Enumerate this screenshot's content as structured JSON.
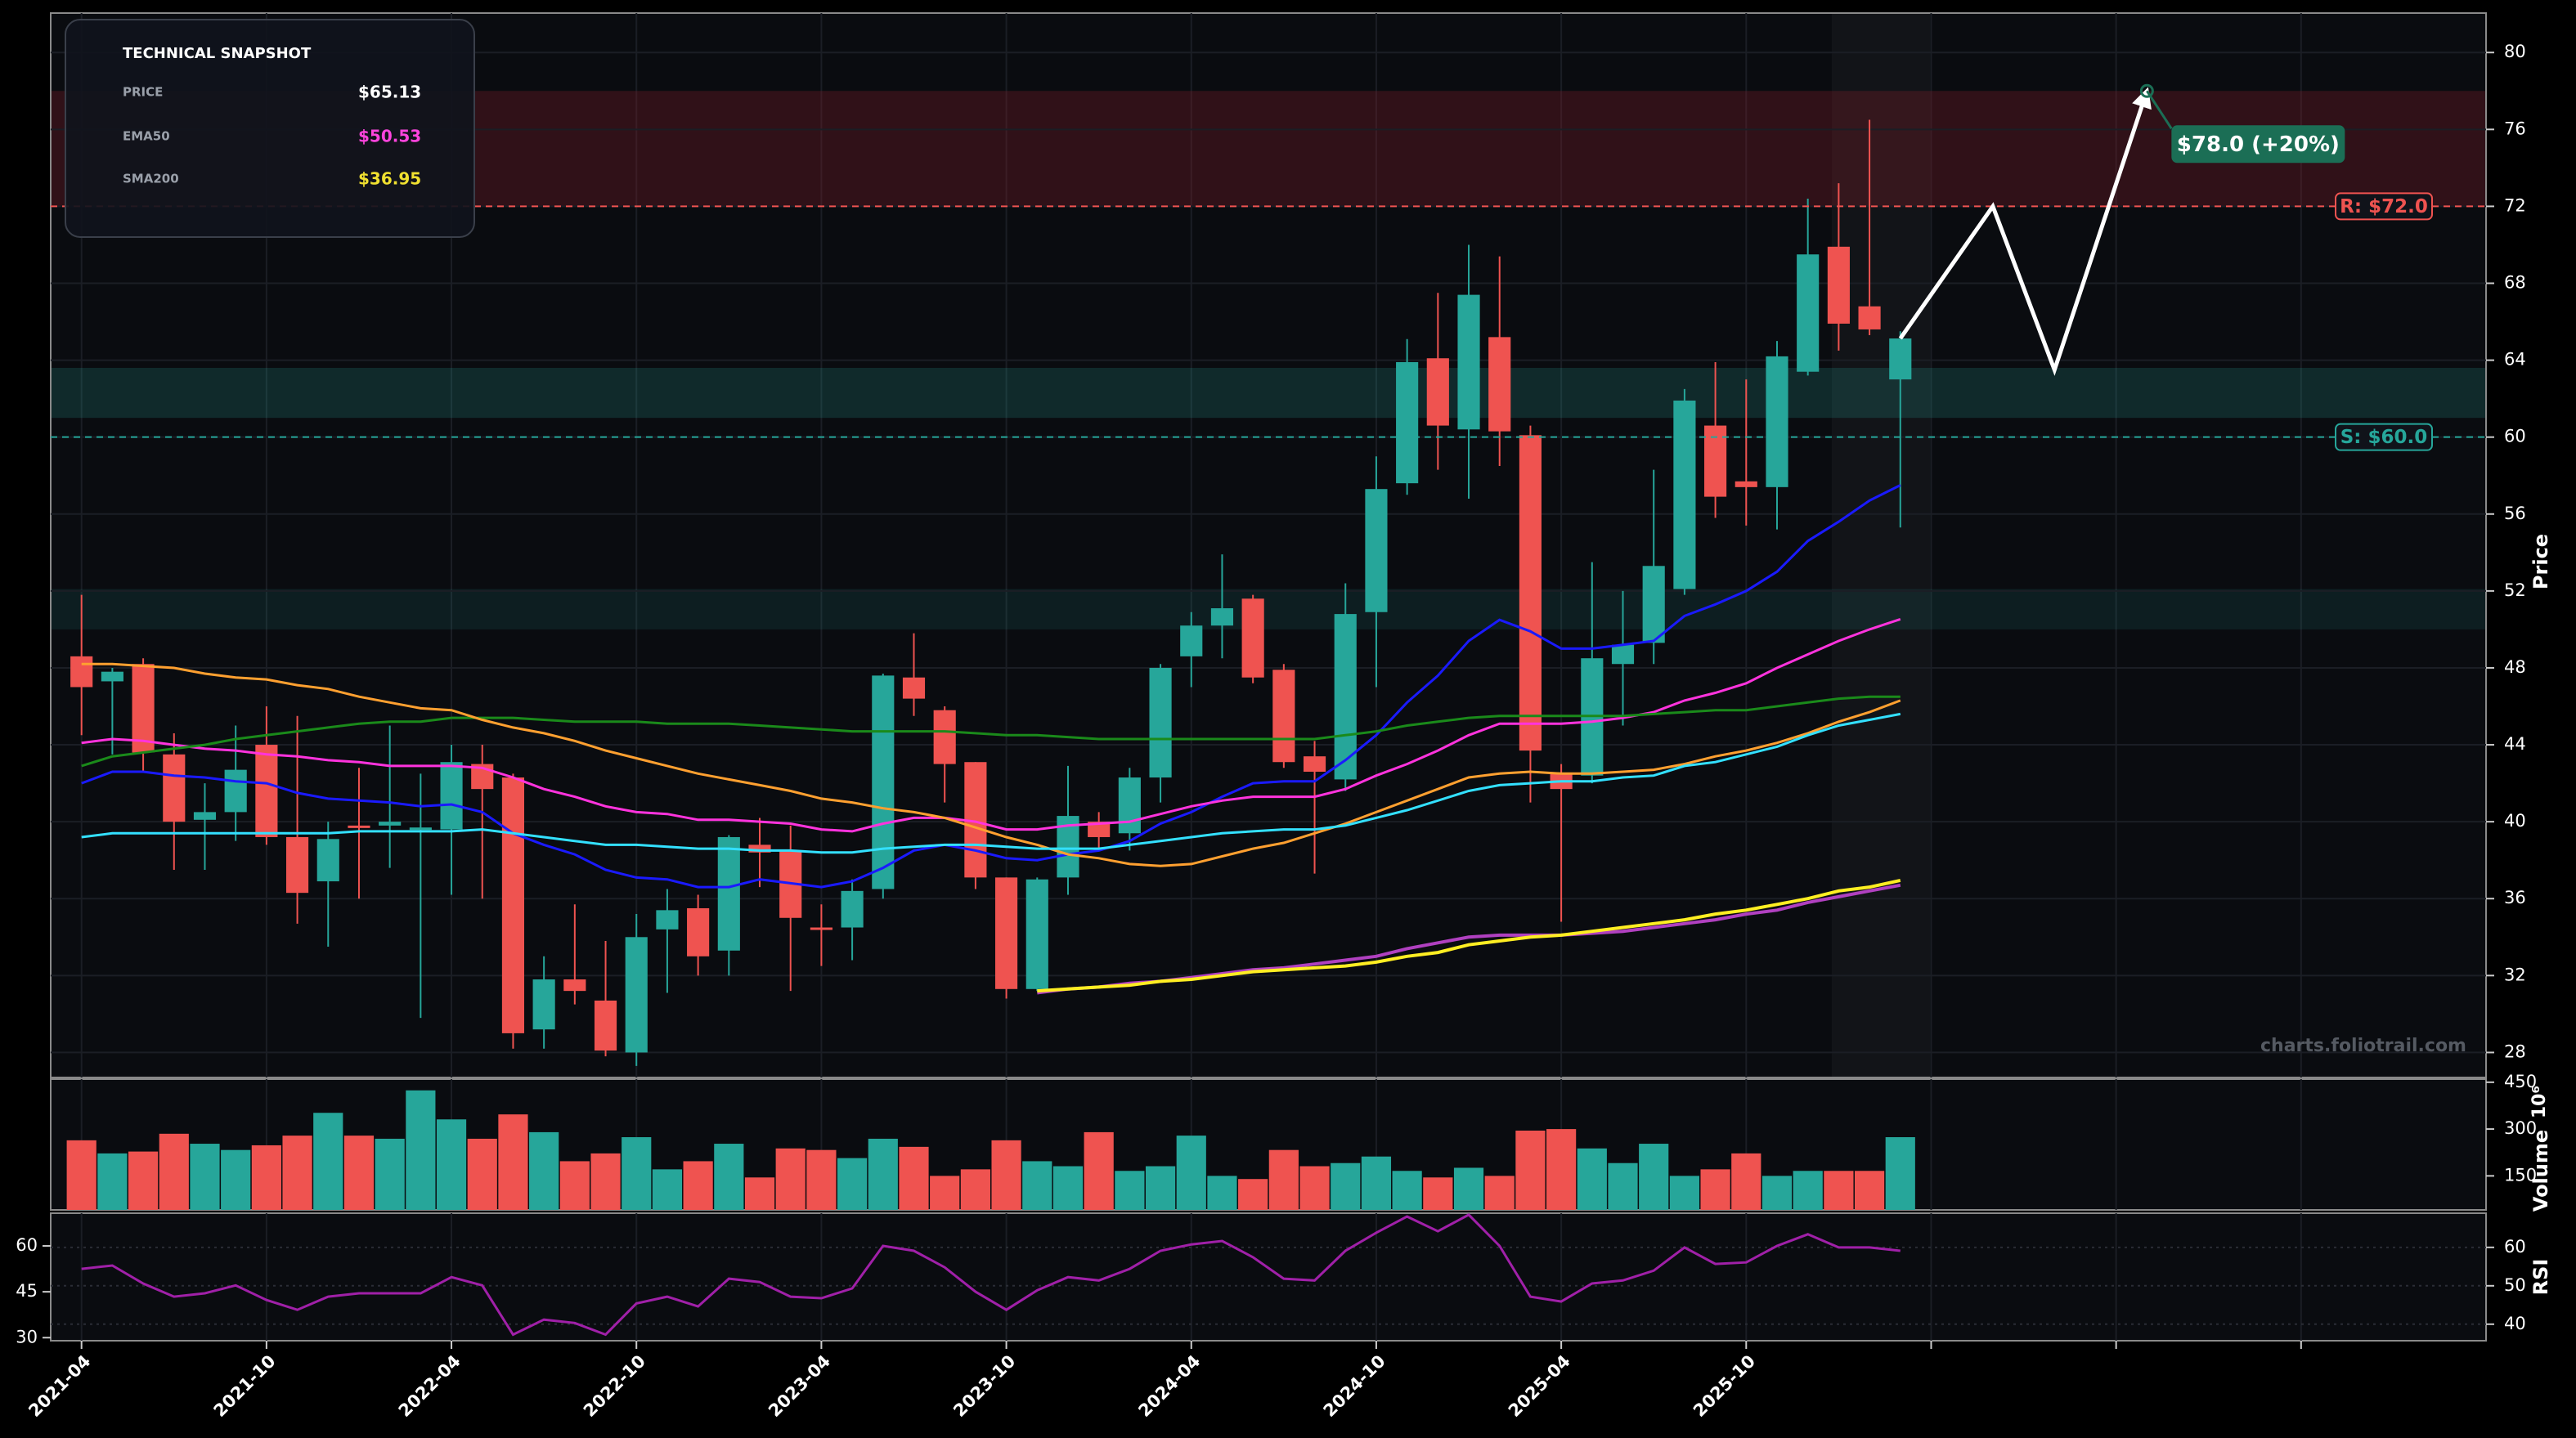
{
  "chart_data": [
    {
      "type": "candlestick",
      "y_label": "Price",
      "watermark": "charts.foliotrail.com",
      "up_color": "#26a69a",
      "down_color": "#ef5350",
      "x": [
        "2021-04",
        "2021-05",
        "2021-06",
        "2021-07",
        "2021-08",
        "2021-09",
        "2021-10",
        "2021-11",
        "2021-12",
        "2022-01",
        "2022-02",
        "2022-03",
        "2022-04",
        "2022-05",
        "2022-06",
        "2022-07",
        "2022-08",
        "2022-09",
        "2022-10",
        "2022-11",
        "2022-12",
        "2023-01",
        "2023-02",
        "2023-03",
        "2023-04",
        "2023-05",
        "2023-06",
        "2023-07",
        "2023-08",
        "2023-09",
        "2023-10",
        "2023-11",
        "2023-12",
        "2024-01",
        "2024-02",
        "2024-03",
        "2024-04",
        "2024-05",
        "2024-06",
        "2024-07",
        "2024-08",
        "2024-09",
        "2024-10",
        "2024-11",
        "2024-12",
        "2025-01",
        "2025-02",
        "2025-03",
        "2025-04",
        "2025-05",
        "2025-06",
        "2025-07",
        "2025-08",
        "2025-09",
        "2025-10",
        "2025-11",
        "2025-12",
        "2026-01",
        "2026-02",
        "2026-03"
      ],
      "open": [
        48.6,
        47.3,
        48.2,
        43.5,
        40.1,
        40.5,
        44.0,
        39.2,
        36.9,
        39.8,
        39.8,
        39.6,
        39.6,
        43.0,
        42.3,
        29.2,
        31.8,
        30.7,
        28.0,
        34.4,
        35.5,
        33.3,
        38.8,
        38.5,
        34.5,
        34.5,
        36.5,
        47.5,
        45.8,
        43.1,
        37.1,
        31.3,
        37.1,
        40.0,
        39.4,
        42.3,
        48.6,
        50.2,
        51.6,
        47.9,
        43.4,
        42.2,
        50.9,
        57.6,
        64.1,
        60.4,
        65.2,
        60.1,
        42.5,
        42.4,
        48.2,
        49.3,
        52.1,
        60.6,
        57.7,
        57.4,
        63.4,
        69.9,
        66.8,
        63.0
      ],
      "high": [
        51.8,
        48.0,
        48.5,
        44.6,
        42.0,
        45.0,
        46.0,
        45.5,
        40.0,
        42.8,
        45.0,
        42.5,
        44.0,
        44.0,
        42.5,
        33.0,
        35.7,
        33.8,
        35.2,
        36.5,
        36.2,
        39.3,
        40.2,
        39.8,
        35.7,
        37.0,
        47.7,
        49.8,
        46.0,
        43.1,
        37.1,
        37.1,
        42.9,
        40.5,
        42.8,
        48.2,
        50.9,
        53.9,
        51.8,
        48.2,
        44.2,
        52.4,
        59.0,
        65.1,
        67.5,
        70.0,
        69.4,
        60.6,
        43.0,
        53.5,
        52.0,
        58.3,
        62.5,
        63.9,
        63.0,
        65.0,
        72.4,
        73.2,
        76.5,
        65.5
      ],
      "low": [
        44.5,
        43.5,
        42.6,
        37.5,
        37.5,
        39.0,
        38.8,
        34.7,
        33.5,
        36.0,
        37.6,
        29.8,
        36.2,
        36.0,
        28.2,
        28.2,
        30.5,
        27.8,
        27.3,
        31.1,
        32.0,
        32.0,
        36.6,
        31.2,
        32.5,
        32.8,
        36.0,
        45.5,
        41.0,
        36.5,
        30.8,
        31.2,
        36.2,
        38.5,
        38.5,
        41.0,
        47.0,
        48.5,
        47.2,
        42.8,
        37.3,
        41.6,
        47.0,
        57.0,
        58.3,
        56.8,
        58.5,
        41.0,
        34.8,
        42.0,
        45.0,
        48.2,
        51.8,
        55.8,
        55.4,
        55.2,
        63.2,
        64.5,
        65.3,
        55.3
      ],
      "close": [
        47.0,
        47.8,
        43.6,
        40.0,
        40.5,
        42.7,
        39.2,
        36.3,
        39.1,
        39.7,
        40.0,
        39.7,
        43.1,
        41.7,
        29.0,
        31.8,
        31.2,
        28.1,
        34.0,
        35.4,
        33.0,
        39.2,
        38.4,
        35.0,
        34.4,
        36.4,
        47.6,
        46.4,
        43.0,
        37.1,
        31.3,
        37.0,
        40.3,
        39.2,
        42.3,
        48.0,
        50.2,
        51.1,
        47.5,
        43.1,
        42.6,
        50.8,
        57.3,
        63.9,
        60.6,
        67.4,
        60.3,
        43.7,
        41.7,
        48.5,
        49.2,
        53.3,
        61.9,
        56.9,
        57.4,
        64.2,
        69.5,
        65.9,
        65.6,
        65.13
      ],
      "series": [
        {
          "color": "#1a1aff",
          "values": [
            42.0,
            42.6,
            42.6,
            42.4,
            42.3,
            42.1,
            42.0,
            41.5,
            41.2,
            41.1,
            41.0,
            40.8,
            40.9,
            40.5,
            39.4,
            38.8,
            38.3,
            37.5,
            37.1,
            37.0,
            36.6,
            36.6,
            37.0,
            36.8,
            36.6,
            36.9,
            37.6,
            38.5,
            38.8,
            38.5,
            38.1,
            38.0,
            38.3,
            38.5,
            39.0,
            39.9,
            40.5,
            41.3,
            42.0,
            42.1,
            42.1,
            43.2,
            44.5,
            46.2,
            47.6,
            49.4,
            50.5,
            49.9,
            49.0,
            49.0,
            49.2,
            49.4,
            50.7,
            51.3,
            52.0,
            53.0,
            54.6,
            55.6,
            56.7,
            57.5
          ]
        },
        {
          "color": "#ff33dd",
          "values": [
            44.1,
            44.3,
            44.2,
            44.0,
            43.8,
            43.7,
            43.5,
            43.4,
            43.2,
            43.1,
            42.9,
            42.9,
            42.9,
            42.8,
            42.3,
            41.7,
            41.3,
            40.8,
            40.5,
            40.4,
            40.1,
            40.1,
            40.0,
            39.9,
            39.6,
            39.5,
            39.9,
            40.2,
            40.2,
            40.0,
            39.6,
            39.6,
            39.8,
            39.9,
            40.0,
            40.4,
            40.8,
            41.1,
            41.3,
            41.3,
            41.3,
            41.7,
            42.4,
            43.0,
            43.7,
            44.5,
            45.1,
            45.1,
            45.1,
            45.2,
            45.4,
            45.7,
            46.3,
            46.7,
            47.2,
            48.0,
            48.7,
            49.4,
            50.0,
            50.53
          ]
        },
        {
          "color": "#1a8a1a",
          "values": [
            42.9,
            43.4,
            43.6,
            43.8,
            44.0,
            44.3,
            44.5,
            44.7,
            44.9,
            45.1,
            45.2,
            45.2,
            45.4,
            45.4,
            45.4,
            45.3,
            45.2,
            45.2,
            45.2,
            45.1,
            45.1,
            45.1,
            45.0,
            44.9,
            44.8,
            44.7,
            44.7,
            44.7,
            44.7,
            44.6,
            44.5,
            44.5,
            44.4,
            44.3,
            44.3,
            44.3,
            44.3,
            44.3,
            44.3,
            44.3,
            44.3,
            44.5,
            44.7,
            45.0,
            45.2,
            45.4,
            45.5,
            45.5,
            45.5,
            45.5,
            45.5,
            45.6,
            45.7,
            45.8,
            45.8,
            46.0,
            46.2,
            46.4,
            46.5,
            46.5
          ]
        },
        {
          "color": "#ffa030",
          "values": [
            48.2,
            48.2,
            48.1,
            48.0,
            47.7,
            47.5,
            47.4,
            47.1,
            46.9,
            46.5,
            46.2,
            45.9,
            45.8,
            45.3,
            44.9,
            44.6,
            44.2,
            43.7,
            43.3,
            42.9,
            42.5,
            42.2,
            41.9,
            41.6,
            41.2,
            41.0,
            40.7,
            40.5,
            40.2,
            39.7,
            39.2,
            38.8,
            38.3,
            38.1,
            37.8,
            37.7,
            37.8,
            38.2,
            38.6,
            38.9,
            39.4,
            39.9,
            40.5,
            41.1,
            41.7,
            42.3,
            42.5,
            42.6,
            42.5,
            42.5,
            42.6,
            42.7,
            43.0,
            43.4,
            43.7,
            44.1,
            44.6,
            45.2,
            45.7,
            46.3
          ]
        },
        {
          "color": "#33e0ff",
          "values": [
            39.2,
            39.4,
            39.4,
            39.4,
            39.4,
            39.4,
            39.4,
            39.4,
            39.4,
            39.5,
            39.5,
            39.5,
            39.5,
            39.6,
            39.4,
            39.2,
            39.0,
            38.8,
            38.8,
            38.7,
            38.6,
            38.6,
            38.5,
            38.5,
            38.4,
            38.4,
            38.6,
            38.7,
            38.8,
            38.8,
            38.7,
            38.6,
            38.6,
            38.6,
            38.8,
            39.0,
            39.2,
            39.4,
            39.5,
            39.6,
            39.6,
            39.8,
            40.2,
            40.6,
            41.1,
            41.6,
            41.9,
            42.0,
            42.1,
            42.1,
            42.3,
            42.4,
            42.9,
            43.1,
            43.5,
            43.9,
            44.5,
            45.0,
            45.3,
            45.6
          ]
        },
        {
          "color": "#b040c0",
          "values": [
            null,
            null,
            null,
            null,
            null,
            null,
            null,
            null,
            null,
            null,
            null,
            null,
            null,
            null,
            null,
            null,
            null,
            null,
            null,
            null,
            null,
            null,
            null,
            null,
            null,
            null,
            null,
            null,
            null,
            null,
            null,
            31.1,
            31.3,
            31.4,
            31.6,
            31.7,
            31.9,
            32.1,
            32.3,
            32.4,
            32.6,
            32.8,
            33.0,
            33.4,
            33.7,
            34.0,
            34.1,
            34.1,
            34.1,
            34.2,
            34.3,
            34.5,
            34.7,
            34.9,
            35.2,
            35.4,
            35.8,
            36.1,
            36.4,
            36.7
          ]
        },
        {
          "color": "#ffee22",
          "values": [
            null,
            null,
            null,
            null,
            null,
            null,
            null,
            null,
            null,
            null,
            null,
            null,
            null,
            null,
            null,
            null,
            null,
            null,
            null,
            null,
            null,
            null,
            null,
            null,
            null,
            null,
            null,
            null,
            null,
            null,
            null,
            31.2,
            31.3,
            31.4,
            31.5,
            31.7,
            31.8,
            32.0,
            32.2,
            32.3,
            32.4,
            32.5,
            32.7,
            33.0,
            33.2,
            33.6,
            33.8,
            34.0,
            34.1,
            34.3,
            34.5,
            34.7,
            34.9,
            35.2,
            35.4,
            35.7,
            36.0,
            36.4,
            36.6,
            36.95
          ]
        }
      ],
      "zones": [
        {
          "from": 72,
          "to": 78,
          "color": "rgba(120,30,40,0.35)"
        },
        {
          "from": 61,
          "to": 63.6,
          "color": "rgba(38,166,154,0.2)"
        },
        {
          "from": 50,
          "to": 52.1,
          "color": "rgba(38,166,154,0.12)"
        }
      ],
      "levels": [
        {
          "value": 72,
          "label": "R: $72.0",
          "color": "#ef5350"
        },
        {
          "value": 60,
          "label": "S: $60.0",
          "color": "#26a69a"
        }
      ],
      "projection": {
        "x": [
          "2026-03",
          "2026-06",
          "2026-08",
          "2026-11"
        ],
        "values": [
          65.13,
          72,
          63.5,
          78
        ],
        "color": "#ffffff"
      },
      "target": {
        "x": "2026-11",
        "value": 78,
        "label": "$78.0 (+20%)",
        "color": "#1b6e55"
      },
      "snapshot": {
        "title": "TECHNICAL SNAPSHOT",
        "rows": [
          {
            "label": "PRICE",
            "value": "$65.13",
            "color": "#ffffff"
          },
          {
            "label": "EMA50",
            "value": "$50.53",
            "color": "#ff44dd"
          },
          {
            "label": "SMA200",
            "value": "$36.95",
            "color": "#f0e030"
          }
        ]
      },
      "xlim": [
        "2021-03",
        "2027-10"
      ],
      "xticks": [
        "2021-04",
        "2021-10",
        "2022-04",
        "2022-10",
        "2023-04",
        "2023-10",
        "2024-04",
        "2024-10",
        "2025-04",
        "2025-10",
        {
          "value": "2026-04",
          "label": null
        },
        {
          "value": "2026-10",
          "label": null
        },
        {
          "value": "2027-04",
          "label": null
        }
      ],
      "ylim": [
        26.7,
        82.05
      ],
      "yticks": [
        28,
        32,
        36,
        40,
        44,
        48,
        52,
        56,
        60,
        64,
        68,
        72,
        76,
        80
      ],
      "grid": true
    },
    {
      "type": "bar",
      "y_label": "Volume",
      "scale_label": "10⁶",
      "values": [
        264,
        222,
        228,
        285,
        253,
        233,
        248,
        279,
        352,
        279,
        269,
        424,
        331,
        269,
        347,
        290,
        197,
        222,
        274,
        171,
        197,
        253,
        145,
        238,
        233,
        207,
        269,
        243,
        150,
        171,
        264,
        197,
        181,
        290,
        166,
        181,
        279,
        150,
        140,
        233,
        181,
        191,
        212,
        166,
        145,
        176,
        150,
        295,
        300,
        238,
        191,
        253,
        150,
        171,
        222,
        150,
        166,
        166,
        166,
        274
      ],
      "ylim": [
        41,
        460
      ],
      "yticks": [
        150,
        300,
        450
      ]
    },
    {
      "type": "line",
      "y_label": "RSI",
      "color": "#a020a8",
      "values": [
        52.5,
        53.6,
        47.7,
        43.4,
        44.5,
        47.1,
        42.3,
        39.1,
        43.4,
        44.5,
        44.5,
        44.5,
        49.8,
        47.1,
        31.0,
        35.9,
        34.8,
        31.0,
        41.2,
        43.4,
        40.2,
        49.3,
        48.2,
        43.4,
        42.9,
        46.1,
        60.0,
        58.4,
        53.0,
        45.0,
        39.1,
        45.5,
        49.8,
        48.7,
        52.5,
        58.4,
        60.5,
        61.6,
        56.3,
        49.3,
        48.7,
        58.4,
        64.3,
        69.6,
        64.8,
        70.2,
        60.0,
        43.4,
        41.8,
        47.7,
        48.7,
        51.9,
        59.5,
        54.1,
        54.6,
        60.0,
        63.8,
        59.5,
        59.5,
        58.4
      ],
      "ylim": [
        29,
        70.7
      ],
      "yticks": [
        30,
        45,
        60
      ],
      "y2lim": [
        35.7,
        68.9
      ],
      "y2ticks": [
        40,
        50,
        60
      ]
    }
  ]
}
